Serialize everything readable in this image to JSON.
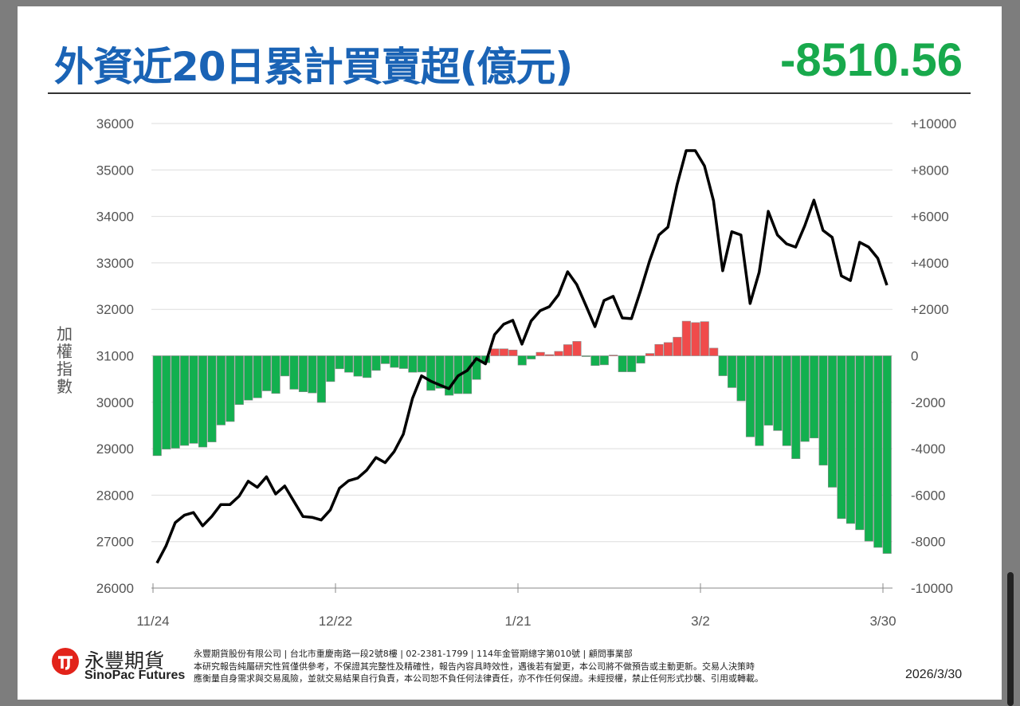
{
  "header": {
    "title": "外資近20日累計買賣超(億元)",
    "current_value": "-8510.56"
  },
  "chart_data": {
    "type": "bar+line",
    "title": "外資近20日累計買賣超(億元)",
    "ylabel_left": "加權指數",
    "x_tick_labels": [
      "11/24",
      "12/22",
      "1/21",
      "3/2",
      "3/30"
    ],
    "x_tick_indices": [
      0,
      20,
      40,
      60,
      80
    ],
    "left_axis": {
      "range": [
        26000,
        36000
      ],
      "ticks": [
        "36000",
        "35000",
        "34000",
        "33000",
        "32000",
        "31000",
        "30000",
        "29000",
        "28000",
        "27000",
        "26000"
      ]
    },
    "right_axis": {
      "range": [
        -10000,
        10000
      ],
      "ticks": [
        "+10000",
        "+8000",
        "+6000",
        "+4000",
        "+2000",
        "0",
        "-2000",
        "-4000",
        "-6000",
        "-8000",
        "-10000"
      ]
    },
    "grid": true,
    "colors": {
      "positive": "#f04b4b",
      "negative": "#12b04f",
      "line": "#000000"
    },
    "series": [
      {
        "name": "外資近20日累計買賣超",
        "axis": "right",
        "type": "bar",
        "values": [
          -4300,
          -4020,
          -3980,
          -3860,
          -3770,
          -3930,
          -3710,
          -2980,
          -2830,
          -2100,
          -1910,
          -1810,
          -1510,
          -1620,
          -870,
          -1440,
          -1550,
          -1600,
          -2010,
          -1110,
          -560,
          -710,
          -880,
          -940,
          -630,
          -340,
          -500,
          -550,
          -710,
          -700,
          -1490,
          -1400,
          -1700,
          -1630,
          -1630,
          -1020,
          -300,
          300,
          300,
          250,
          -400,
          -140,
          150,
          50,
          190,
          480,
          620,
          -20,
          -420,
          -390,
          30,
          -690,
          -690,
          -320,
          100,
          490,
          570,
          800,
          1490,
          1430,
          1470,
          330,
          -860,
          -1370,
          -1940,
          -3490,
          -3870,
          -2990,
          -3220,
          -3870,
          -4430,
          -3690,
          -3540,
          -4710,
          -5660,
          -7010,
          -7220,
          -7490,
          -7980,
          -8250,
          -8510.56
        ]
      },
      {
        "name": "加權指數",
        "axis": "left",
        "type": "line",
        "values": [
          26538,
          26910,
          27408,
          27568,
          27626,
          27340,
          27540,
          27797,
          27797,
          27980,
          28300,
          28168,
          28397,
          28025,
          28197,
          27866,
          27540,
          27523,
          27465,
          27683,
          28150,
          28311,
          28368,
          28540,
          28809,
          28700,
          28940,
          29312,
          30083,
          30569,
          30455,
          30370,
          30294,
          30569,
          30683,
          30940,
          30826,
          31455,
          31680,
          31764,
          31250,
          31750,
          31970,
          32056,
          32313,
          32810,
          32536,
          32090,
          31627,
          32190,
          32280,
          31815,
          31800,
          32400,
          33050,
          33600,
          33770,
          34680,
          35417,
          35417,
          35090,
          34336,
          32830,
          33670,
          33600,
          32125,
          32800,
          34110,
          33600,
          33410,
          33340,
          33800,
          34350,
          33700,
          33550,
          32720,
          32620,
          33445,
          33340,
          33100,
          32520
        ]
      }
    ]
  },
  "footer": {
    "brand_zh": "永豐期貨",
    "brand_en": "SinoPac Futures",
    "line1": "永豐期貨股份有限公司 | 台北市重慶南路一段2號8樓 | 02-2381-1799 | 114年金管期總字第010號 | 顧問事業部",
    "line2": "本研究報告純屬研究性質僅供參考，不保證其完整性及精確性，報告內容具時效性，遇後若有變更，本公司將不做預告或主動更新。交易人決策時",
    "line3": "應衡量自身需求與交易風險，並就交易結果自行負責，本公司恕不負任何法律責任，亦不作任何保證。未經授權，禁止任何形式抄襲、引用或轉載。",
    "date": "2026/3/30"
  }
}
